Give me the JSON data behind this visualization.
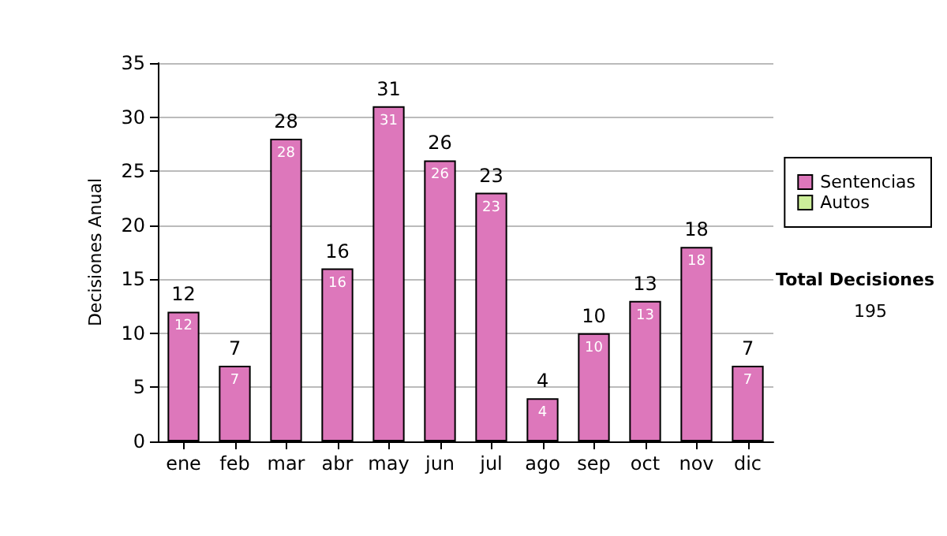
{
  "chart_data": {
    "type": "bar",
    "stacked": true,
    "ylabel": "Decisiones Anual",
    "categories": [
      "ene",
      "feb",
      "mar",
      "abr",
      "may",
      "jun",
      "jul",
      "ago",
      "sep",
      "oct",
      "nov",
      "dic"
    ],
    "series": [
      {
        "name": "Sentencias",
        "color": "#dd77bb",
        "values": [
          12,
          7,
          28,
          16,
          31,
          26,
          23,
          4,
          10,
          13,
          18,
          7
        ],
        "value_labels": [
          "12",
          "7",
          "28",
          "16",
          "31",
          "26",
          "23",
          "4",
          "10",
          "13",
          "18",
          "7"
        ]
      },
      {
        "name": "Autos",
        "color": "#ccee99",
        "values": [
          0,
          0,
          0,
          0,
          0,
          0,
          0,
          0,
          0,
          0,
          0,
          0
        ]
      }
    ],
    "totals": [
      "12",
      "7",
      "28",
      "16",
      "31",
      "26",
      "23",
      "4",
      "10",
      "13",
      "18",
      "7"
    ],
    "ylim": [
      0,
      35
    ],
    "yticks": [
      0,
      5,
      10,
      15,
      20,
      25,
      30,
      35
    ],
    "grid": "y",
    "legend": "right",
    "annotations": [
      "Total Decisiones",
      "195"
    ]
  }
}
